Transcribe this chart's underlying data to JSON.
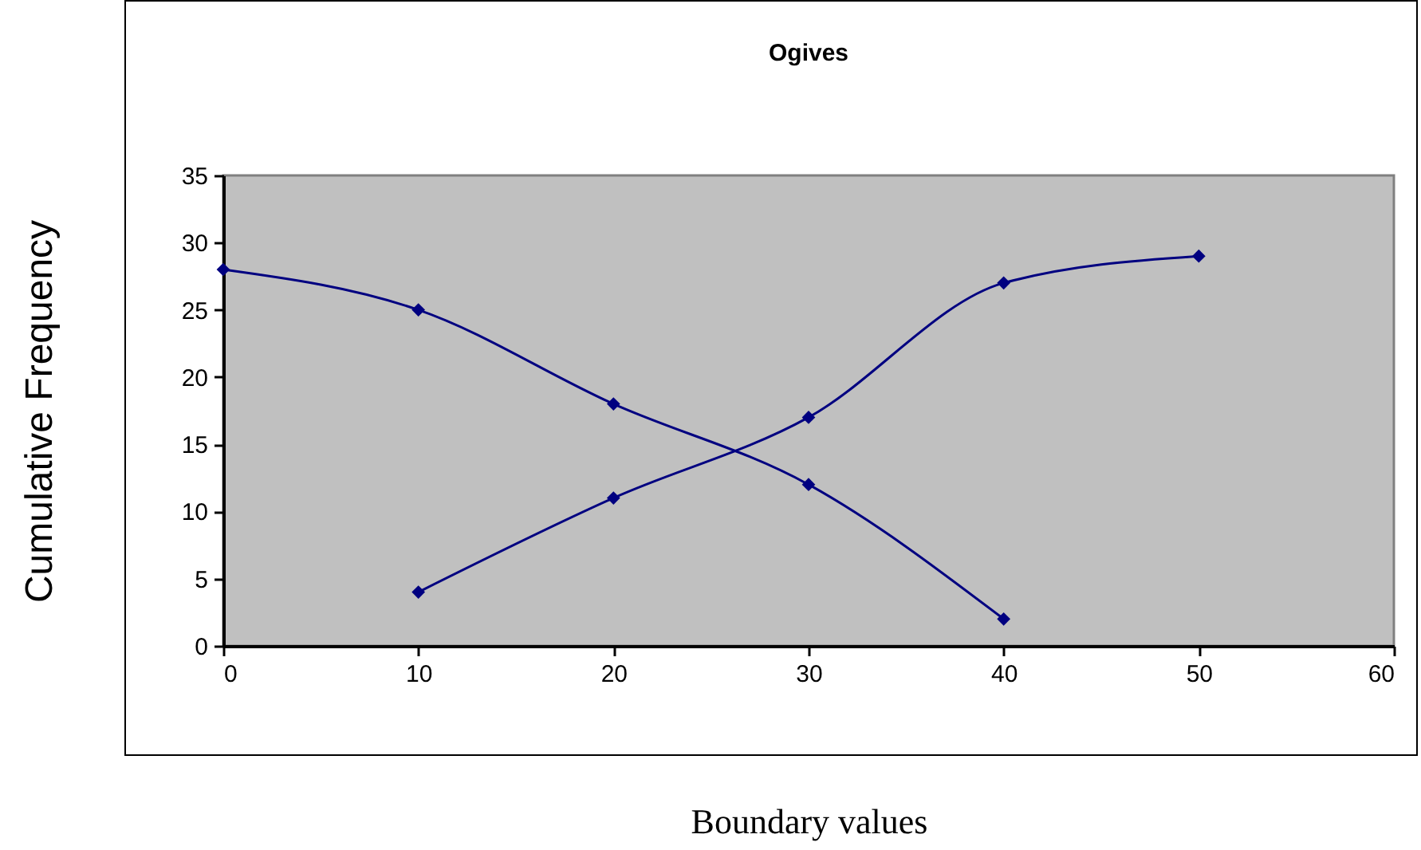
{
  "chart_data": {
    "type": "line",
    "title": "Ogives",
    "xlabel": "Boundary values",
    "ylabel": "Cumulative Frequency",
    "series": [
      {
        "color": "#000080",
        "x": [
          0,
          10,
          20,
          30,
          40
        ],
        "values": [
          28,
          25,
          18,
          12,
          2
        ]
      },
      {
        "color": "#000080",
        "x": [
          10,
          20,
          30,
          40,
          50
        ],
        "values": [
          4,
          11,
          17,
          27,
          29
        ]
      }
    ],
    "xlim": [
      0,
      60
    ],
    "xticks": [
      0,
      10,
      20,
      30,
      40,
      50,
      60
    ],
    "ylim": [
      0,
      35
    ],
    "yticks": [
      0,
      5,
      10,
      15,
      20,
      25,
      30,
      35
    ],
    "marker": "diamond",
    "line_style": "solid"
  }
}
